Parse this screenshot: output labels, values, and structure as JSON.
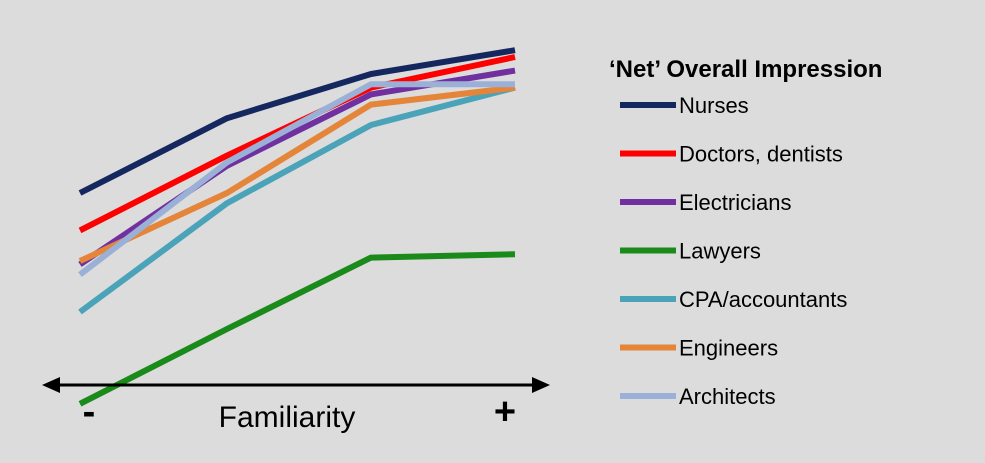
{
  "chart_data": {
    "type": "line",
    "title": "",
    "xlabel": "Familiarity",
    "ylabel": "",
    "x_axis_left_label": "-",
    "x_axis_right_label": "+",
    "categories": [
      "1",
      "2",
      "3",
      "4"
    ],
    "ylim": [
      0,
      100
    ],
    "legend": {
      "title": "‘Net’ Overall Impression",
      "placement": "right"
    },
    "series": [
      {
        "name": "Nurses",
        "color": "#14285f",
        "values": [
          55,
          77,
          90,
          97
        ]
      },
      {
        "name": "Doctors, dentists",
        "color": "#ff0000",
        "values": [
          44,
          66,
          86,
          95
        ]
      },
      {
        "name": "Electricians",
        "color": "#7030a0",
        "values": [
          34,
          63,
          84,
          91
        ]
      },
      {
        "name": "Lawyers",
        "color": "#1a8a1a",
        "values": [
          -7,
          15,
          36,
          37
        ]
      },
      {
        "name": "CPA/accountants",
        "color": "#4aa3b8",
        "values": [
          20,
          52,
          75,
          86
        ]
      },
      {
        "name": "Engineers",
        "color": "#e4853a",
        "values": [
          35,
          55,
          81,
          86
        ]
      },
      {
        "name": "Architects",
        "color": "#9bb0d6",
        "values": [
          31,
          64,
          87,
          87
        ]
      }
    ],
    "grid": false
  }
}
